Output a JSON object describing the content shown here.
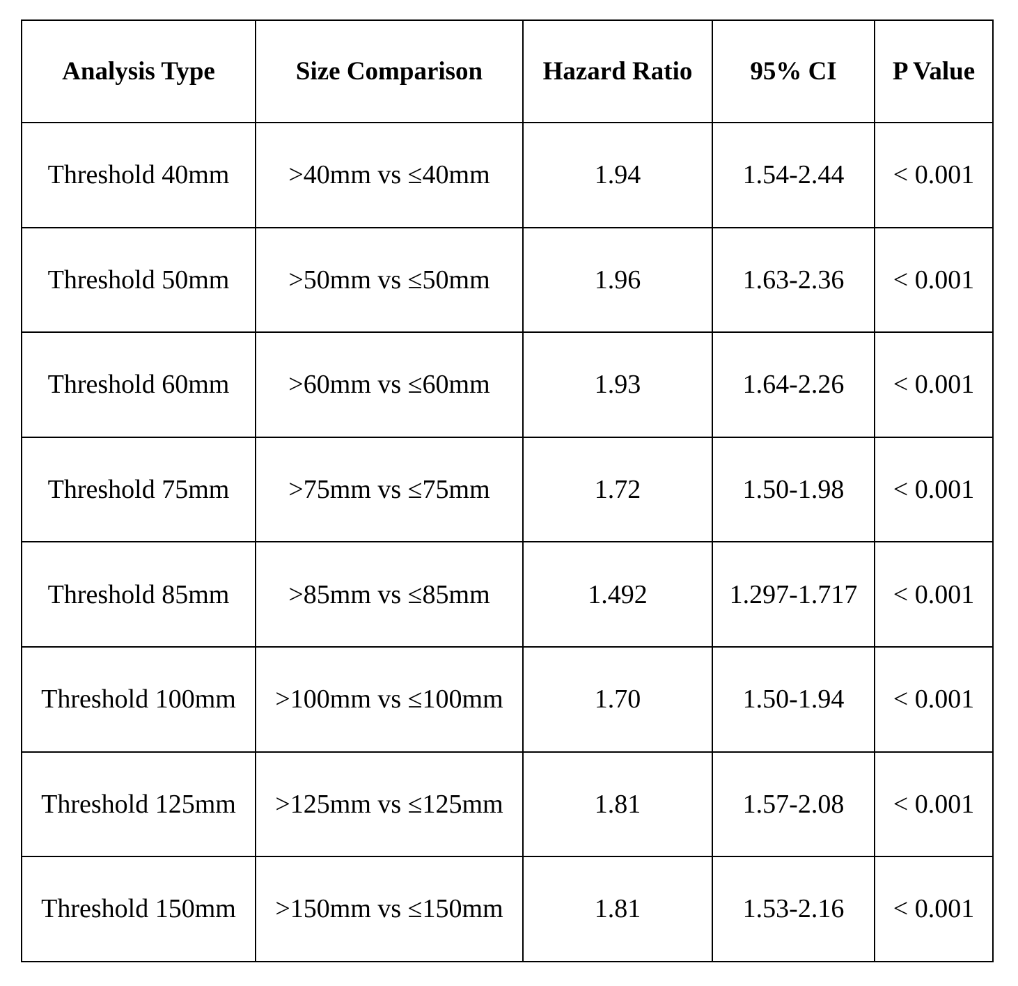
{
  "table": {
    "header": [
      "Analysis Type",
      "Size Comparison",
      "Hazard Ratio",
      "95% CI",
      "P Value"
    ],
    "rows": [
      [
        "Threshold 40mm",
        ">40mm vs ≤40mm",
        "1.94",
        "1.54-2.44",
        "< 0.001"
      ],
      [
        "Threshold 50mm",
        ">50mm vs ≤50mm",
        "1.96",
        "1.63-2.36",
        "< 0.001"
      ],
      [
        "Threshold 60mm",
        ">60mm vs ≤60mm",
        "1.93",
        "1.64-2.26",
        "< 0.001"
      ],
      [
        "Threshold 75mm",
        ">75mm vs ≤75mm",
        "1.72",
        "1.50-1.98",
        "< 0.001"
      ],
      [
        "Threshold 85mm",
        ">85mm vs ≤85mm",
        "1.492",
        "1.297-1.717",
        "< 0.001"
      ],
      [
        "Threshold 100mm",
        ">100mm vs ≤100mm",
        "1.70",
        "1.50-1.94",
        "< 0.001"
      ],
      [
        "Threshold 125mm",
        ">125mm vs ≤125mm",
        "1.81",
        "1.57-2.08",
        "< 0.001"
      ],
      [
        "Threshold 150mm",
        ">150mm vs ≤150mm",
        "1.81",
        "1.53-2.16",
        "< 0.001"
      ]
    ]
  }
}
